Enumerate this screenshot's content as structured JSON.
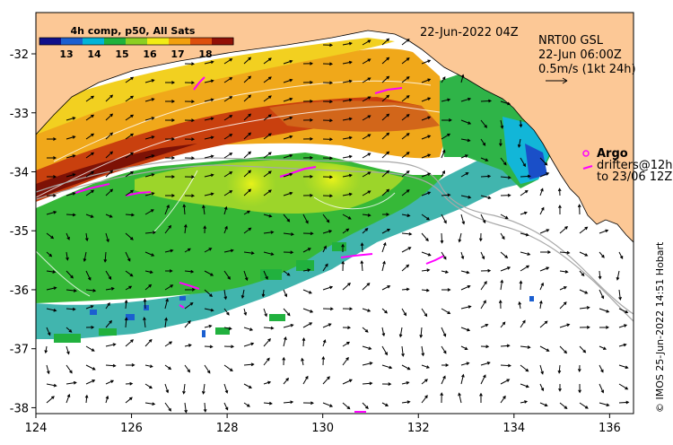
{
  "map": {
    "lon_range": [
      124,
      136.5
    ],
    "lat_range": [
      -38.1,
      -31.3
    ],
    "lon_ticks": [
      "124",
      "126",
      "128",
      "130",
      "132",
      "134",
      "136"
    ],
    "lat_ticks": [
      "-32",
      "-33",
      "-34",
      "-35",
      "-36",
      "-37",
      "-38"
    ],
    "land_color": "#fcc896",
    "argo_color": "#ff00ff"
  },
  "colorbar": {
    "title": "4h comp, p50, All Sats",
    "labels": [
      "13",
      "14",
      "15",
      "16",
      "17",
      "18"
    ],
    "colors": [
      "#10108a",
      "#1b5fd0",
      "#00b4d8",
      "#1fb23c",
      "#8ccf22",
      "#f2ec14",
      "#f2a00f",
      "#dd4f0c",
      "#921006"
    ]
  },
  "annotations": {
    "date": "22-Jun-2022 04Z",
    "product": "NRT00 GSL",
    "product_time": "22-Jun 06:00Z",
    "scale": "0.5m/s (1kt 24h)",
    "argo": "Argo",
    "drifters_line1": "drifters@12h",
    "drifters_line2": "to 23/06 12Z"
  },
  "credit": "© IMOS 25-Jun-2022 14:51 Hobart"
}
